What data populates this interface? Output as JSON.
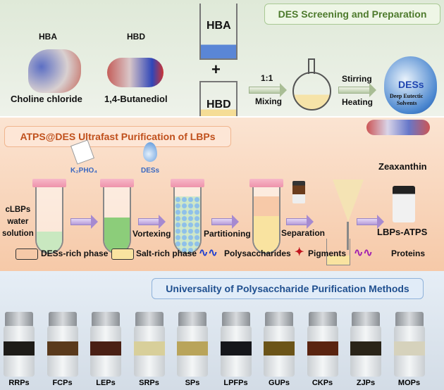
{
  "section1": {
    "title": "DES Screening and Preparation",
    "hba_label": "HBA",
    "hbd_label": "HBD",
    "hba_name": "Choline chloride",
    "hbd_name": "1,4-Butanediol",
    "beaker_hba": "HBA",
    "beaker_hbd": "HBD",
    "plus": "+",
    "ratio": "1:1",
    "mixing": "Mixing",
    "stirring": "Stirring",
    "heating": "Heating",
    "drop_title": "DESs",
    "drop_sub1": "Deep Eutectic",
    "drop_sub2": "Solvents"
  },
  "section2": {
    "title": "ATPS@DES Ultrafast Purification of LBPs",
    "start_label": [
      "cLBPs",
      "water",
      "solution"
    ],
    "k2pho4": "K₂PHO₄",
    "dess": "DESs",
    "vortexing": "Vortexing",
    "partitioning": "Partitioning",
    "separation": "Separation",
    "zeaxanthin": "Zeaxanthin",
    "lbps_atps": "LBPs-ATPS",
    "legend": [
      "DESs-rich phase",
      "Salt-rich phase",
      "Polysaccharides",
      "Pigments",
      "Proteins"
    ]
  },
  "section3": {
    "title": "Universality of Polysaccharide Purification Methods",
    "samples": [
      {
        "label": "RRPs",
        "color": "#1e1c18"
      },
      {
        "label": "FCPs",
        "color": "#5a3a1c"
      },
      {
        "label": "LEPs",
        "color": "#4a2014"
      },
      {
        "label": "SRPs",
        "color": "#d8cf9a"
      },
      {
        "label": "SPs",
        "color": "#b9a45a"
      },
      {
        "label": "LPFPs",
        "color": "#15161a"
      },
      {
        "label": "GUPs",
        "color": "#6b5418"
      },
      {
        "label": "CKPs",
        "color": "#5a2410"
      },
      {
        "label": "ZJPs",
        "color": "#2a2418"
      },
      {
        "label": "MOPs",
        "color": "#d6d2bc"
      }
    ]
  },
  "colors": {
    "green_title": "#4d7a2c",
    "orange_title": "#c0501c",
    "blue_title": "#1f4f8f"
  }
}
